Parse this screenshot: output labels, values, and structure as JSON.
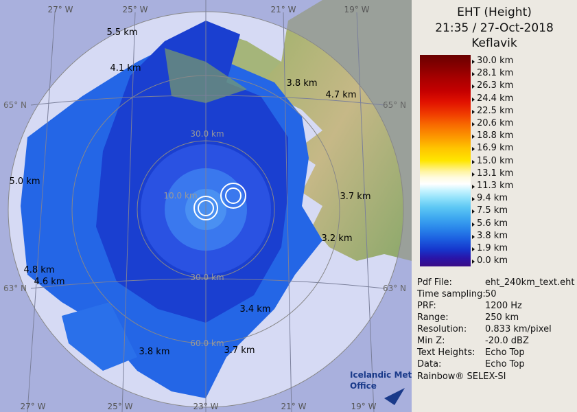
{
  "header": {
    "title": "EHT (Height)",
    "datetime": "21:35 / 27-Oct-2018",
    "site": "Keflavik"
  },
  "legend": {
    "labels": [
      "30.0 km",
      "28.1 km",
      "26.3 km",
      "24.4 km",
      "22.5 km",
      "20.6 km",
      "18.8 km",
      "16.9 km",
      "15.0 km",
      "13.1 km",
      "11.3 km",
      "9.4 km",
      "7.5 km",
      "5.6 km",
      "3.8 km",
      "1.9 km",
      "0.0 km"
    ]
  },
  "map": {
    "longitude_labels_top": [
      "27° W",
      "25° W",
      "21° W",
      "19° W"
    ],
    "longitude_labels_bottom": [
      "27° W",
      "25° W",
      "23° W",
      "21° W",
      "19° W"
    ],
    "latitude_labels": [
      "65° N",
      "65° N",
      "63° N",
      "63° N"
    ],
    "range_labels": [
      "30.0 km",
      "10.0 km",
      "30.0 km",
      "60.0 km"
    ],
    "echo_top_labels": [
      "5.5 km",
      "4.1 km",
      "3.8 km",
      "4.7 km",
      "5.0 km",
      "3.7 km",
      "3.2 km",
      "4.8 km",
      "4.6 km",
      "3.4 km",
      "3.8 km",
      "3.7 km"
    ],
    "logo": [
      "Icelandic Met",
      "Office"
    ]
  },
  "info": {
    "rows": [
      [
        "Pdf File:",
        "eht_240km_text.eht"
      ],
      [
        "Time sampling:",
        "50"
      ],
      [
        "PRF:",
        "1200 Hz"
      ],
      [
        "Range:",
        "250 km"
      ],
      [
        "Resolution:",
        "0.833 km/pixel"
      ],
      [
        "Min Z:",
        "-20.0 dBZ"
      ],
      [
        "Text Heights:",
        "Echo Top"
      ],
      [
        "Data:",
        "Echo Top"
      ]
    ]
  },
  "footer": {
    "product": "Rainbow® SELEX-SI"
  }
}
